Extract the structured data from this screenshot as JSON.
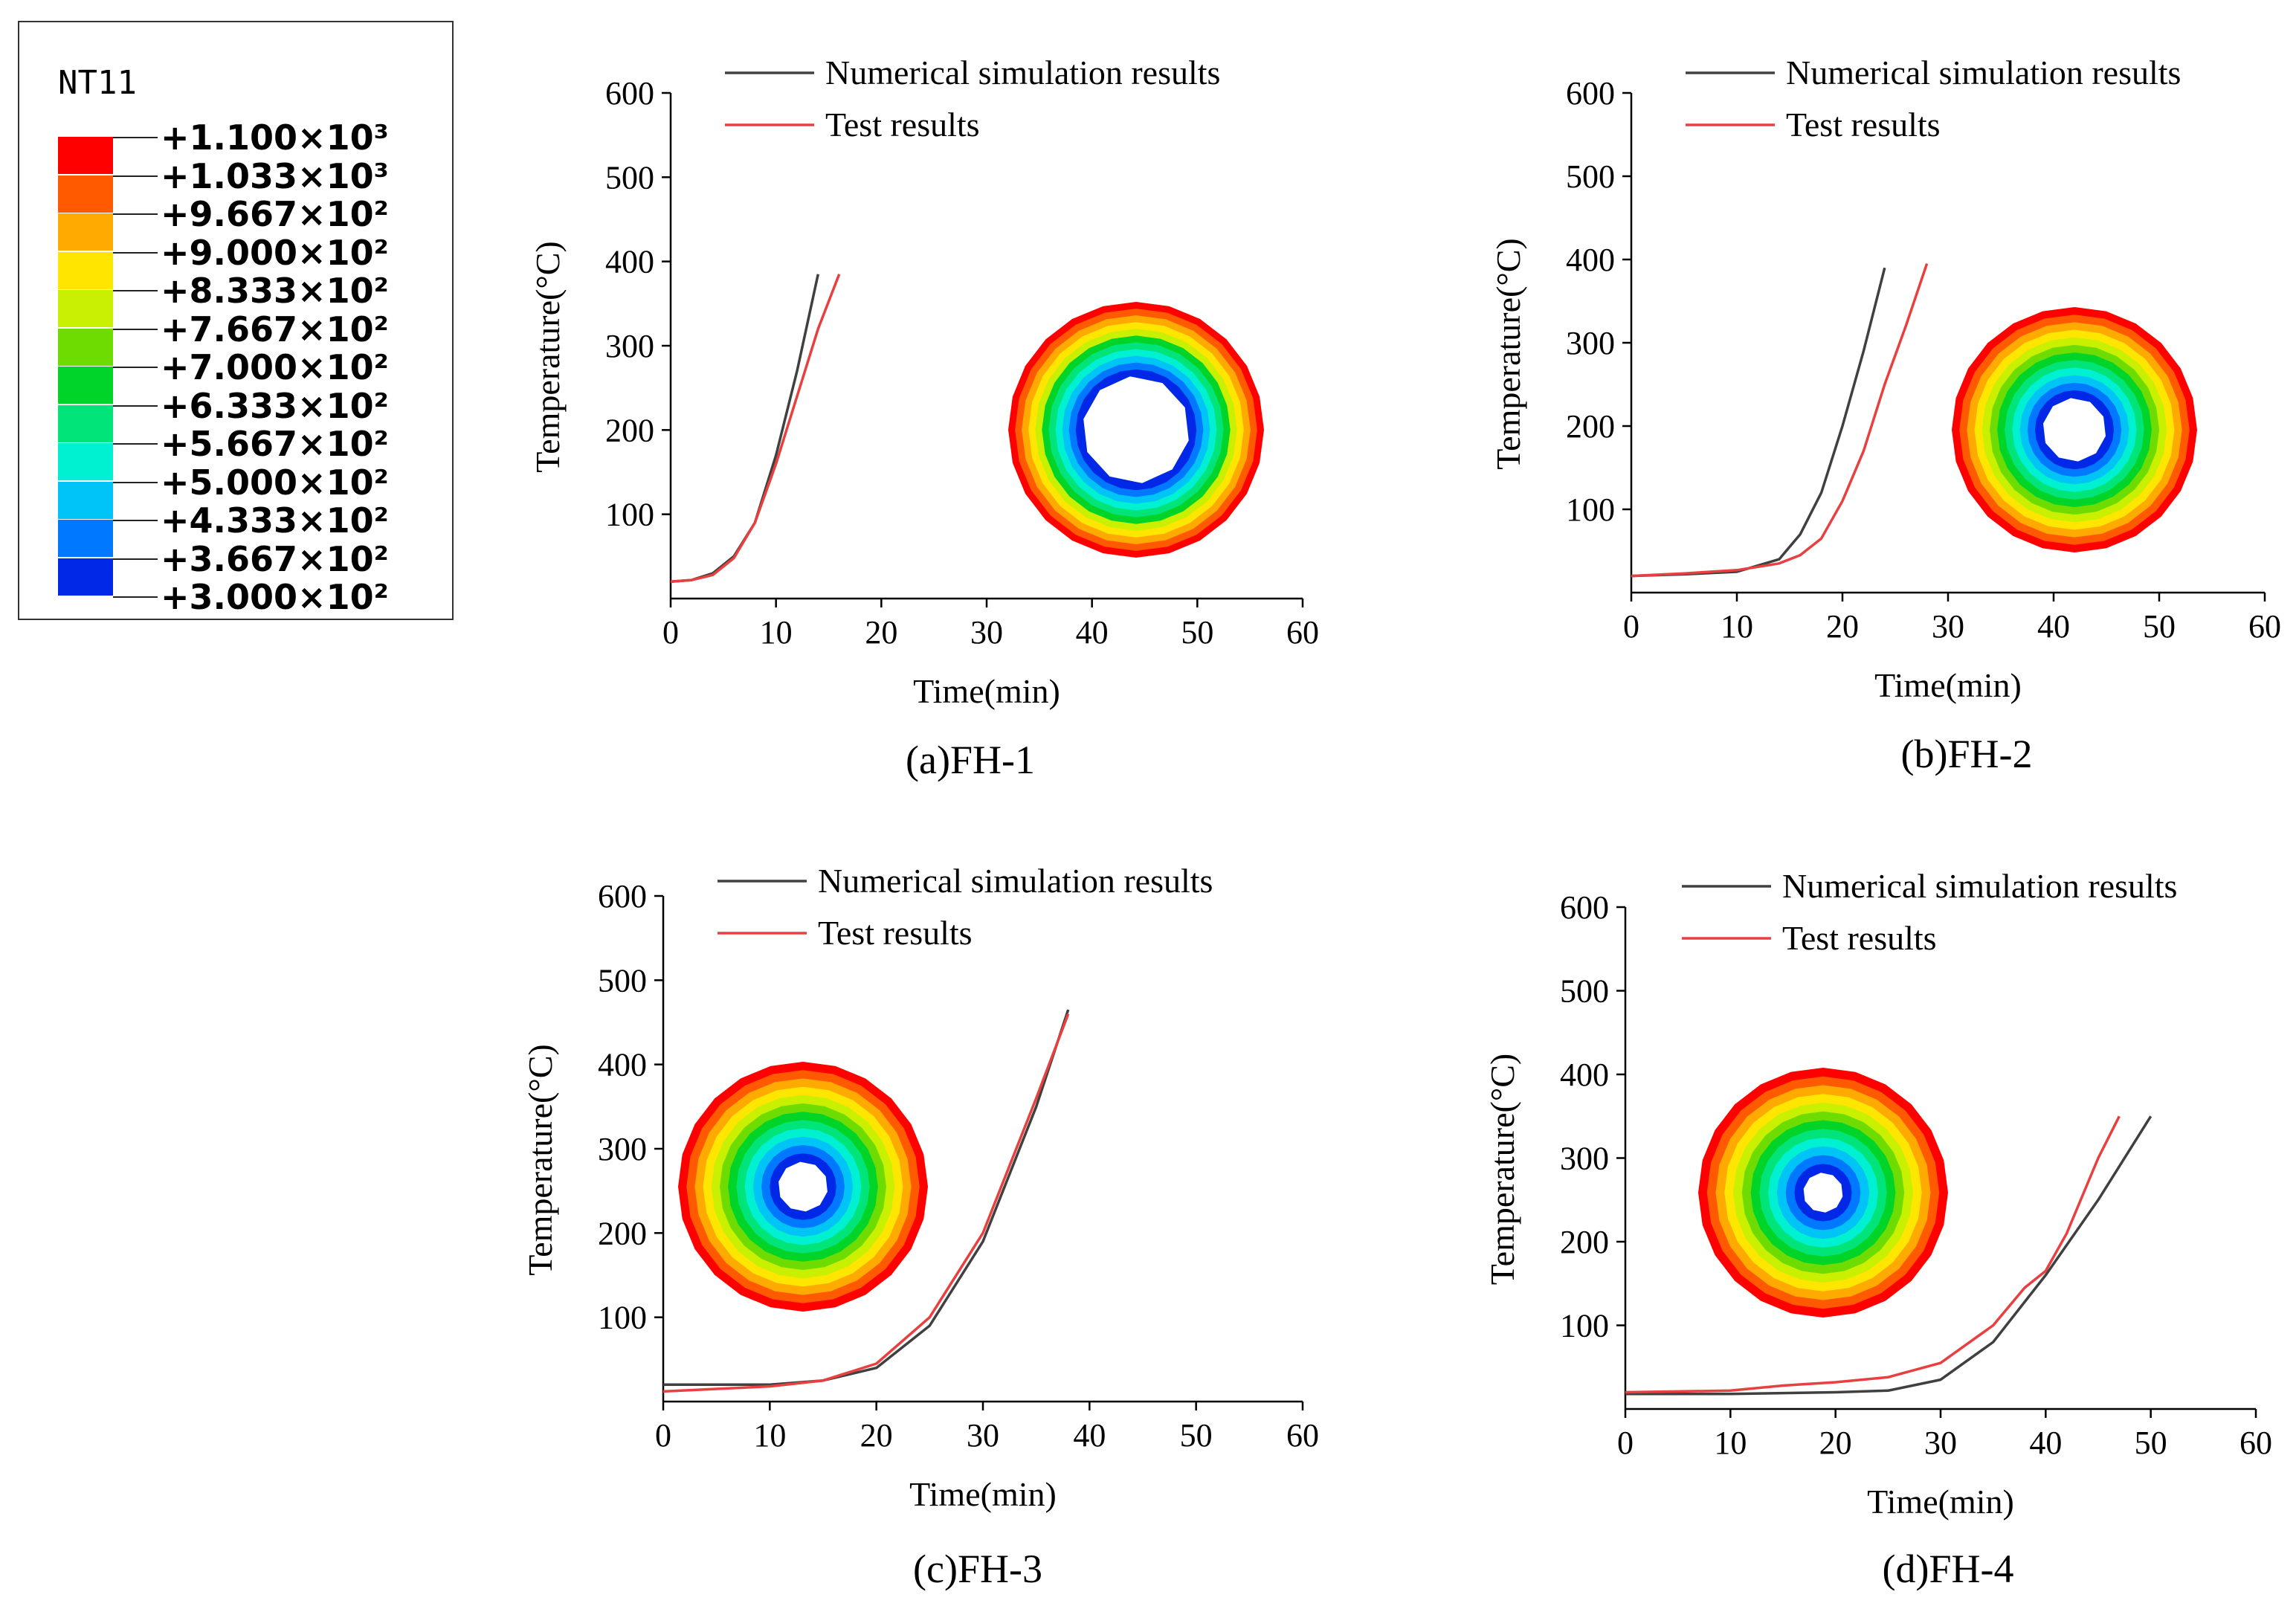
{
  "contour_legend": {
    "title": "NT11",
    "levels": [
      {
        "label": "+1.100×10³",
        "color": "#ff0000"
      },
      {
        "label": "+1.033×10³",
        "color": "#ff5a00"
      },
      {
        "label": "+9.667×10²",
        "color": "#ffaa00"
      },
      {
        "label": "+9.000×10²",
        "color": "#ffe600"
      },
      {
        "label": "+8.333×10²",
        "color": "#c8f000"
      },
      {
        "label": "+7.667×10²",
        "color": "#6edc00"
      },
      {
        "label": "+7.000×10²",
        "color": "#00d428"
      },
      {
        "label": "+6.333×10²",
        "color": "#00e47a"
      },
      {
        "label": "+5.667×10²",
        "color": "#00f0d2"
      },
      {
        "label": "+5.000×10²",
        "color": "#00c4f5"
      },
      {
        "label": "+4.333×10²",
        "color": "#0078ff"
      },
      {
        "label": "+3.667×10²",
        "color": "#0028e6"
      },
      {
        "label": "+3.000×10²",
        "color": ""
      }
    ]
  },
  "chart_data": [
    {
      "type": "line",
      "caption": "(a)FH-1",
      "xlabel": "Time(min)",
      "ylabel": "Temperature(°C)",
      "xlim": [
        0,
        60
      ],
      "ylim": [
        0,
        600
      ],
      "xticks": [
        "0",
        "10",
        "20",
        "30",
        "40",
        "50",
        "60"
      ],
      "yticks": [
        "100",
        "200",
        "300",
        "400",
        "500",
        "600"
      ],
      "series": [
        {
          "name": "Numerical simulation results",
          "color": "#404040",
          "x": [
            0,
            2,
            4,
            6,
            8,
            10,
            12,
            14
          ],
          "y": [
            20,
            22,
            30,
            50,
            90,
            170,
            270,
            385
          ]
        },
        {
          "name": "Test results",
          "color": "#e84040",
          "x": [
            0,
            2,
            4,
            6,
            8,
            10,
            12,
            14,
            16
          ],
          "y": [
            20,
            22,
            28,
            48,
            90,
            160,
            240,
            320,
            385
          ]
        }
      ],
      "contour": {
        "rings": 11,
        "hole": 0.42
      }
    },
    {
      "type": "line",
      "caption": "(b)FH-2",
      "xlabel": "Time(min)",
      "ylabel": "Temperature(°C)",
      "xlim": [
        0,
        60
      ],
      "ylim": [
        0,
        600
      ],
      "xticks": [
        "0",
        "10",
        "20",
        "30",
        "40",
        "50",
        "60"
      ],
      "yticks": [
        "100",
        "200",
        "300",
        "400",
        "500",
        "600"
      ],
      "series": [
        {
          "name": "Numerical simulation results",
          "color": "#404040",
          "x": [
            0,
            5,
            10,
            14,
            16,
            18,
            20,
            22,
            24
          ],
          "y": [
            20,
            22,
            25,
            40,
            70,
            120,
            200,
            290,
            390
          ]
        },
        {
          "name": "Test results",
          "color": "#e84040",
          "x": [
            0,
            5,
            10,
            14,
            16,
            18,
            20,
            22,
            24,
            26,
            28
          ],
          "y": [
            20,
            23,
            27,
            35,
            45,
            65,
            110,
            170,
            250,
            320,
            395
          ]
        }
      ],
      "contour": {
        "rings": 12,
        "hole": 0.26
      }
    },
    {
      "type": "line",
      "caption": "(c)FH-3",
      "xlabel": "Time(min)",
      "ylabel": "Temperature(°C)",
      "xlim": [
        0,
        60
      ],
      "ylim": [
        0,
        600
      ],
      "xticks": [
        "0",
        "10",
        "20",
        "30",
        "40",
        "50",
        "60"
      ],
      "yticks": [
        "100",
        "200",
        "300",
        "400",
        "500",
        "600"
      ],
      "series": [
        {
          "name": "Numerical simulation results",
          "color": "#404040",
          "x": [
            0,
            5,
            10,
            15,
            20,
            25,
            30,
            35,
            38
          ],
          "y": [
            20,
            20,
            20,
            25,
            40,
            90,
            190,
            350,
            465
          ]
        },
        {
          "name": "Test results",
          "color": "#e84040",
          "x": [
            0,
            5,
            10,
            15,
            20,
            25,
            30,
            35,
            38
          ],
          "y": [
            12,
            15,
            18,
            25,
            45,
            100,
            200,
            360,
            460
          ]
        }
      ],
      "contour": {
        "rings": 12,
        "hole": 0.2
      }
    },
    {
      "type": "line",
      "caption": "(d)FH-4",
      "xlabel": "Time(min)",
      "ylabel": "Temperature(°C)",
      "xlim": [
        0,
        60
      ],
      "ylim": [
        0,
        600
      ],
      "xticks": [
        "0",
        "10",
        "20",
        "30",
        "40",
        "50",
        "60"
      ],
      "yticks": [
        "100",
        "200",
        "300",
        "400",
        "500",
        "600"
      ],
      "series": [
        {
          "name": "Numerical simulation results",
          "color": "#404040",
          "x": [
            0,
            10,
            20,
            25,
            30,
            35,
            40,
            45,
            50
          ],
          "y": [
            18,
            18,
            20,
            22,
            35,
            80,
            160,
            250,
            350
          ]
        },
        {
          "name": "Test results",
          "color": "#e84040",
          "x": [
            0,
            10,
            15,
            20,
            25,
            30,
            35,
            38,
            40,
            42,
            45,
            47
          ],
          "y": [
            20,
            22,
            28,
            32,
            38,
            55,
            100,
            145,
            165,
            210,
            300,
            350
          ]
        }
      ],
      "contour": {
        "rings": 12,
        "hole": 0.16
      }
    }
  ]
}
